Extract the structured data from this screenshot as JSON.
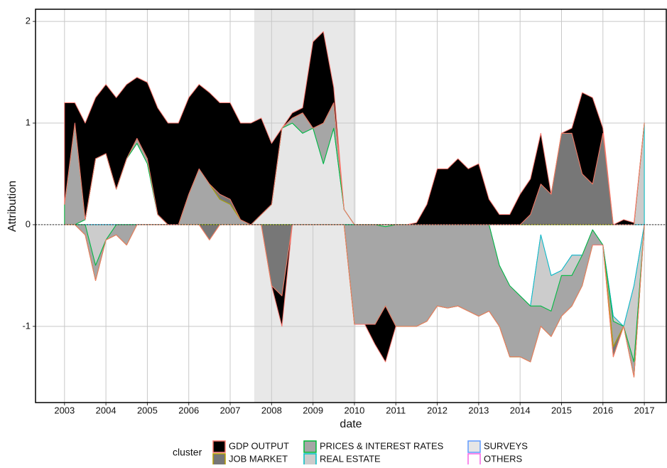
{
  "chart_data": {
    "type": "stacked_area",
    "x_label": "date",
    "y_label": "Attribution",
    "legend_title": "cluster",
    "x": [
      2003.0,
      2003.25,
      2003.5,
      2003.75,
      2004.0,
      2004.25,
      2004.5,
      2004.75,
      2005.0,
      2005.25,
      2005.5,
      2005.75,
      2006.0,
      2006.25,
      2006.5,
      2006.75,
      2007.0,
      2007.25,
      2007.5,
      2007.75,
      2008.0,
      2008.25,
      2008.5,
      2008.75,
      2009.0,
      2009.25,
      2009.5,
      2009.75,
      2010.0,
      2010.25,
      2010.5,
      2010.75,
      2011.0,
      2011.25,
      2011.5,
      2011.75,
      2012.0,
      2012.25,
      2012.5,
      2012.75,
      2013.0,
      2013.25,
      2013.5,
      2013.75,
      2014.0,
      2014.25,
      2014.5,
      2014.75,
      2015.0,
      2015.25,
      2015.5,
      2015.75,
      2016.0,
      2016.25,
      2016.5,
      2016.75,
      2017.0
    ],
    "series": [
      {
        "name": "GDP OUTPUT",
        "color": "#F8766D",
        "fill": "#000000",
        "values": [
          1.0,
          0.2,
          0.95,
          0.6,
          0.68,
          0.9,
          0.73,
          0.6,
          0.75,
          1.05,
          1.0,
          1.0,
          0.95,
          0.83,
          0.9,
          0.9,
          0.95,
          0.95,
          1.0,
          0.95,
          0.6,
          -0.3,
          0.05,
          0.05,
          0.85,
          0.9,
          0.15,
          0,
          0,
          0,
          -0.2,
          -0.55,
          0,
          0,
          0.02,
          0.2,
          0.55,
          0.55,
          0.65,
          0.55,
          0.6,
          0.25,
          0.1,
          0.1,
          0.3,
          0.35,
          0.5,
          0,
          0,
          0.05,
          0.8,
          0.85,
          0.05,
          0,
          0.05,
          0.02,
          0
        ]
      },
      {
        "name": "JOB MARKET",
        "color": "#B79F00",
        "fill": "#777777",
        "values": [
          0,
          0,
          0,
          0,
          0,
          0,
          0,
          0,
          0,
          0,
          0,
          0,
          0,
          0,
          -0.15,
          0.05,
          0.05,
          0,
          0,
          0,
          -0.6,
          -0.7,
          0,
          0,
          0,
          0,
          0,
          0,
          0,
          0,
          0,
          0,
          0,
          0,
          0,
          0,
          0,
          0,
          0,
          0,
          0,
          0,
          0,
          0,
          0,
          0.1,
          0.4,
          0.3,
          0.9,
          0.9,
          0.5,
          0.4,
          0.9,
          -0.1,
          0,
          0,
          0
        ]
      },
      {
        "name": "PRICES & INTEREST RATES",
        "color": "#00BA38",
        "fill": "#a6a6a6",
        "values": [
          0.2,
          1.0,
          -0.1,
          -0.15,
          0,
          -0.1,
          -0.2,
          0.05,
          0.05,
          0,
          0,
          0,
          0.3,
          0.55,
          0.4,
          0.25,
          0.2,
          0.05,
          0,
          0,
          0,
          0,
          0.05,
          0.2,
          0,
          0.4,
          0.25,
          0,
          -0.98,
          -0.98,
          -0.98,
          -0.78,
          -1.0,
          -1.0,
          -1.0,
          -0.95,
          -0.8,
          -0.82,
          -0.8,
          -0.85,
          -0.9,
          -0.85,
          -0.6,
          -0.7,
          -0.6,
          -0.55,
          -0.2,
          -0.25,
          -0.4,
          -0.3,
          -0.3,
          -0.15,
          0,
          -0.25,
          0,
          -0.15,
          0
        ]
      },
      {
        "name": "REAL ESTATE",
        "color": "#00BFC4",
        "fill": "#cccccc",
        "values": [
          0,
          0,
          0,
          -0.4,
          -0.15,
          0,
          0,
          0,
          0,
          0,
          0,
          0,
          0,
          0,
          0,
          0,
          0,
          0,
          0,
          0,
          0,
          0,
          0,
          0,
          0,
          0,
          0,
          0,
          0,
          0,
          0,
          -0.02,
          0,
          0,
          0,
          0,
          0,
          0,
          0,
          0,
          0,
          0,
          0,
          0,
          0,
          0,
          -0.7,
          -0.35,
          -0.05,
          -0.2,
          0,
          0,
          0,
          -0.05,
          0,
          -0.75,
          1.0
        ]
      },
      {
        "name": "SURVEYS",
        "color": "#619CFF",
        "fill": "#e6e6e6",
        "values": [
          0,
          0,
          0,
          0,
          0,
          0,
          0,
          0,
          0,
          0,
          0,
          0,
          0,
          0,
          0,
          0,
          0,
          0,
          0,
          0.1,
          0.2,
          0.95,
          1.0,
          0.9,
          0.95,
          0.6,
          0.95,
          0.15,
          0,
          0,
          0,
          0,
          0,
          0,
          0,
          0,
          0,
          0,
          0,
          0,
          0,
          0,
          0,
          0,
          0,
          0,
          0,
          0,
          0,
          0,
          0,
          0,
          0,
          0,
          0,
          0,
          0
        ]
      },
      {
        "name": "OTHERS",
        "color": "#F564E3",
        "fill": "#ffffff",
        "values": [
          0,
          0,
          0.05,
          0.65,
          0.7,
          0.35,
          0.65,
          0.8,
          0.6,
          0.1,
          0,
          0,
          0,
          0,
          0,
          0,
          0,
          0,
          0,
          0,
          0,
          0,
          0,
          0,
          0,
          0,
          0,
          0,
          0,
          0,
          0,
          0,
          0,
          0,
          0,
          0,
          0,
          0,
          0,
          0,
          0,
          0,
          -0.4,
          -0.6,
          -0.7,
          -0.8,
          -0.1,
          -0.5,
          -0.45,
          -0.3,
          -0.3,
          -0.05,
          -0.2,
          -0.9,
          -1.0,
          -0.6,
          0
        ]
      }
    ],
    "shade": [
      2007.58,
      2010.03
    ],
    "shade_color": "#e8e8e8",
    "hline": 0,
    "xlim": [
      2002.3,
      2017.53
    ],
    "xticks": [
      2003,
      2004,
      2005,
      2006,
      2007,
      2008,
      2009,
      2010,
      2011,
      2012,
      2013,
      2014,
      2015,
      2016,
      2017
    ],
    "ylim": [
      -1.75,
      2.12
    ],
    "yticks": [
      -1,
      0,
      1,
      2
    ],
    "grid": true
  }
}
